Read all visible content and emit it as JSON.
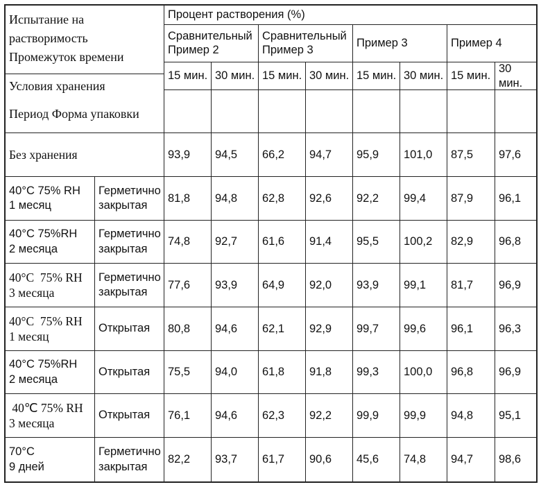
{
  "table": {
    "corner": {
      "top": "Испытание на\nрастворимость\nПромежуток времени",
      "bottom": "Условия хранения\n\nПериод Форма упаковки"
    },
    "main_header": "Процент растворения (%)",
    "groups": [
      {
        "label": "Сравнительный Пример 2"
      },
      {
        "label": "Сравнительный Пример 3"
      },
      {
        "label": "Пример 3"
      },
      {
        "label": "Пример 4"
      }
    ],
    "time_headers": [
      "15 мин.",
      "30 мин.",
      "15 мин.",
      "30 мин.",
      "15 мин.",
      "30 мин.",
      "15 мин.",
      "30 мин."
    ],
    "rows": [
      {
        "period": "Без хранения",
        "packaging": null,
        "label_style": "serif",
        "values": [
          "93,9",
          "94,5",
          "66,2",
          "94,7",
          "95,9",
          "101,0",
          "87,5",
          "97,6"
        ]
      },
      {
        "period": "40°C 75% RH\n1 месяц",
        "packaging": "Герметично закрытая",
        "label_style": "sans",
        "values": [
          "81,8",
          "94,8",
          "62,8",
          "92,6",
          "92,2",
          "99,4",
          "87,9",
          "96,1"
        ]
      },
      {
        "period": "40°C 75%RH\n2 месяца",
        "packaging": "Герметично закрытая",
        "label_style": "sans",
        "values": [
          "74,8",
          "92,7",
          "61,6",
          "91,4",
          "95,5",
          "100,2",
          "82,9",
          "96,8"
        ]
      },
      {
        "period": "40°С  75% RH\n3 месяца",
        "packaging": "Герметично закрытая",
        "label_style": "serif",
        "values": [
          "77,6",
          "93,9",
          "64,9",
          "92,0",
          "93,9",
          "99,1",
          "81,7",
          "96,9"
        ]
      },
      {
        "period": "40°С  75% RH\n1 месяц",
        "packaging": "Открытая",
        "label_style": "serif",
        "values": [
          "80,8",
          "94,6",
          "62,1",
          "92,9",
          "99,7",
          "99,6",
          "96,1",
          "96,3"
        ]
      },
      {
        "period": "40°C 75%RH\n2 месяца",
        "packaging": "Открытая",
        "label_style": "sans",
        "values": [
          "75,5",
          "94,0",
          "61,8",
          "91,8",
          "99,3",
          "100,0",
          "96,8",
          "96,9"
        ]
      },
      {
        "period": " 40℃ 75% RH\n3 месяца",
        "packaging": "Открытая",
        "label_style": "serif",
        "values": [
          "76,1",
          "94,6",
          "62,3",
          "92,2",
          "99,9",
          "99,9",
          "94,8",
          "95,1"
        ]
      },
      {
        "period": "70°C\n9 дней",
        "packaging": "Герметично закрытая",
        "label_style": "sans",
        "values": [
          "82,2",
          "93,7",
          "61,7",
          "90,6",
          "45,6",
          "74,8",
          "94,7",
          "98,6"
        ]
      }
    ]
  }
}
